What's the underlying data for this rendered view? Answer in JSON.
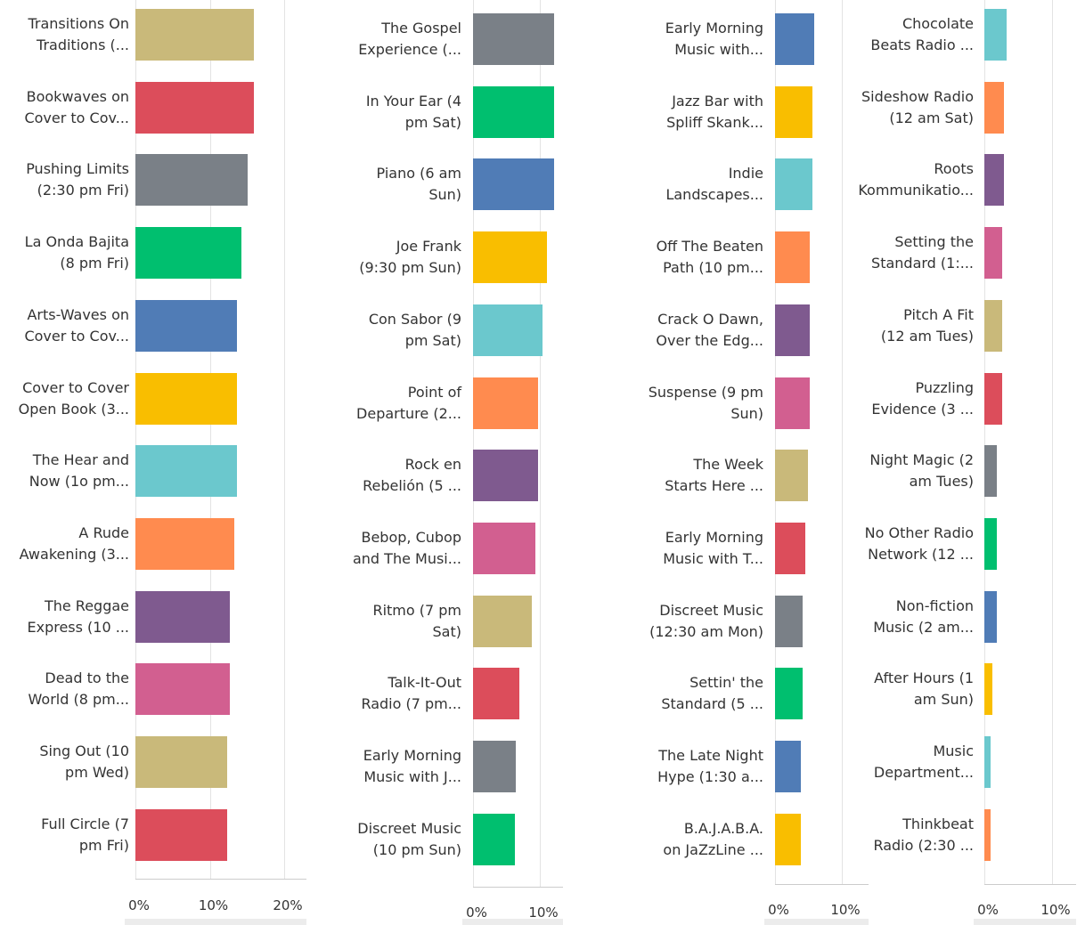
{
  "chart_data": [
    {
      "type": "bar",
      "orientation": "horizontal",
      "categories": [
        "Transitions On\nTraditions (...",
        "Bookwaves on\nCover to Cov...",
        "Pushing Limits\n(2:30 pm Fri)",
        "La Onda Bajita\n(8 pm Fri)",
        "Arts-Waves on\nCover to Cov...",
        "Cover to Cover\nOpen Book (3...",
        "The Hear and\nNow (1o pm...",
        "A Rude\nAwakening (3...",
        "The Reggae\nExpress (10 ...",
        "Dead to the\nWorld (8 pm...",
        "Sing Out (10\npm Wed)",
        "Full Circle (7\npm Fri)"
      ],
      "values": [
        15.9,
        15.9,
        15.1,
        14.3,
        13.7,
        13.7,
        13.7,
        13.3,
        12.7,
        12.7,
        12.3,
        12.3
      ],
      "colors": [
        "#c9b97a",
        "#dc4d5b",
        "#7a8087",
        "#00bf6f",
        "#507cb6",
        "#f9be00",
        "#6bc8cd",
        "#ff8b4f",
        "#7f5a8f",
        "#d25f90",
        "#c9b97a",
        "#dc4d5b"
      ],
      "xlim": [
        0,
        23
      ],
      "xticks": [
        {
          "value": 0,
          "label": "0%"
        },
        {
          "value": 10,
          "label": "10%"
        },
        {
          "value": 20,
          "label": "20%"
        }
      ],
      "grid": true
    },
    {
      "type": "bar",
      "orientation": "horizontal",
      "categories": [
        "The Gospel\nExperience (...",
        "In Your Ear (4\npm Sat)",
        "Piano (6 am\nSun)",
        "Joe Frank\n(9:30 pm Sun)",
        "Con Sabor (9\npm Sat)",
        "Point of\nDeparture (2...",
        "Rock en\nRebelión (5 ...",
        "Bebop, Cubop\nand The Musi...",
        "Ritmo (7 pm\nSat)",
        "Talk-It-Out\nRadio (7 pm...",
        "Early Morning\nMusic with J...",
        "Discreet Music\n(10 pm Sun)"
      ],
      "values": [
        12.1,
        12.1,
        12.1,
        11.1,
        10.4,
        9.7,
        9.7,
        9.3,
        8.8,
        6.9,
        6.4,
        6.3
      ],
      "colors": [
        "#7a8087",
        "#00bf6f",
        "#507cb6",
        "#f9be00",
        "#6bc8cd",
        "#ff8b4f",
        "#7f5a8f",
        "#d25f90",
        "#c9b97a",
        "#dc4d5b",
        "#7a8087",
        "#00bf6f"
      ],
      "xlim": [
        0,
        13.5
      ],
      "xticks": [
        {
          "value": 0,
          "label": "0%"
        },
        {
          "value": 10,
          "label": "10%"
        }
      ],
      "grid": true
    },
    {
      "type": "bar",
      "orientation": "horizontal",
      "categories": [
        "Early Morning\nMusic with...",
        "Jazz Bar with\nSpliff Skank...",
        "Indie\nLandscapes...",
        "Off The Beaten\nPath (10 pm...",
        "Crack O Dawn,\nOver the Edg...",
        "Suspense (9 pm\nSun)",
        "The Week\nStarts Here ...",
        "Early Morning\nMusic with T...",
        "Discreet Music\n(12:30 am Mon)",
        "Settin' the\nStandard (5 ...",
        "The Late Night\nHype (1:30 a...",
        "B.A.J.A.B.A.\non JaZzLine ..."
      ],
      "values": [
        5.9,
        5.6,
        5.6,
        5.2,
        5.2,
        5.2,
        4.9,
        4.5,
        4.1,
        4.1,
        3.9,
        3.9
      ],
      "colors": [
        "#507cb6",
        "#f9be00",
        "#6bc8cd",
        "#ff8b4f",
        "#7f5a8f",
        "#d25f90",
        "#c9b97a",
        "#dc4d5b",
        "#7a8087",
        "#00bf6f",
        "#507cb6",
        "#f9be00"
      ],
      "xlim": [
        0,
        14
      ],
      "xticks": [
        {
          "value": 0,
          "label": "0%"
        },
        {
          "value": 10,
          "label": "10%"
        }
      ],
      "grid": true
    },
    {
      "type": "bar",
      "orientation": "horizontal",
      "categories": [
        "Chocolate\nBeats Radio ...",
        "Sideshow Radio\n(12 am Sat)",
        "Roots\nKommunikatio...",
        "Setting the\nStandard (1:...",
        "Pitch A Fit\n(12 am Tues)",
        "Puzzling\nEvidence (3 ...",
        "Night Magic (2\nam Tues)",
        "No Other Radio\nNetwork (12 ...",
        "Non-fiction\nMusic (2 am...",
        "After Hours (1\nam Sun)",
        "Music\nDepartment...",
        "Thinkbeat\nRadio (2:30 ..."
      ],
      "values": [
        3.3,
        2.9,
        2.9,
        2.6,
        2.6,
        2.6,
        1.8,
        1.8,
        1.8,
        1.2,
        0.9,
        0.9
      ],
      "colors": [
        "#6bc8cd",
        "#ff8b4f",
        "#7f5a8f",
        "#d25f90",
        "#c9b97a",
        "#dc4d5b",
        "#7a8087",
        "#00bf6f",
        "#507cb6",
        "#f9be00",
        "#6bc8cd",
        "#ff8b4f"
      ],
      "xlim": [
        0,
        13.5
      ],
      "xticks": [
        {
          "value": 0,
          "label": "0%"
        },
        {
          "value": 10,
          "label": "10%"
        }
      ],
      "grid": true
    }
  ]
}
